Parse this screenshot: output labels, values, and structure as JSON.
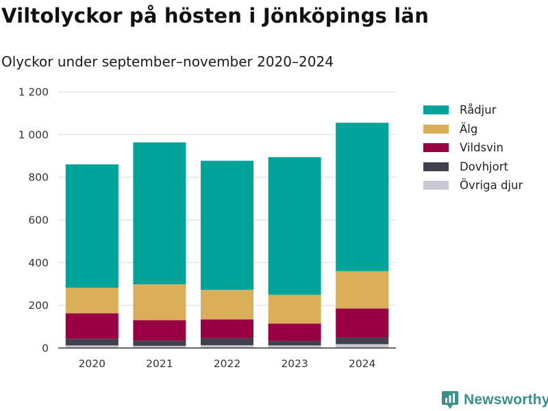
{
  "title": "Viltolyckor på hösten i Jönköpings län",
  "subtitle": "Olyckor under september–november 2020–2024",
  "brand": {
    "name": "Newsworthy",
    "icon": "bar-chart-pin-icon"
  },
  "chart_data": {
    "type": "bar",
    "stacked": true,
    "categories": [
      "2020",
      "2021",
      "2022",
      "2023",
      "2024"
    ],
    "series": [
      {
        "name": "Övriga djur",
        "color": "#c9c7d1",
        "values": [
          12,
          10,
          13,
          12,
          18
        ]
      },
      {
        "name": "Dovhjort",
        "color": "#42404e",
        "values": [
          32,
          25,
          33,
          22,
          32
        ]
      },
      {
        "name": "Vildsvin",
        "color": "#990044",
        "values": [
          118,
          95,
          88,
          80,
          135
        ]
      },
      {
        "name": "Älg",
        "color": "#dbae5a",
        "values": [
          120,
          168,
          138,
          135,
          175
        ]
      },
      {
        "name": "Rådjur",
        "color": "#00a39a",
        "values": [
          578,
          665,
          605,
          645,
          695
        ]
      }
    ],
    "yticks": [
      0,
      200,
      400,
      600,
      800,
      1000,
      1200
    ],
    "ytick_labels": [
      "0",
      "200",
      "400",
      "600",
      "800",
      "1 000",
      "1 200"
    ],
    "ylim": [
      0,
      1200
    ],
    "grid": true,
    "legend_position": "right",
    "legend_order": [
      "Rådjur",
      "Älg",
      "Vildsvin",
      "Dovhjort",
      "Övriga djur"
    ]
  }
}
